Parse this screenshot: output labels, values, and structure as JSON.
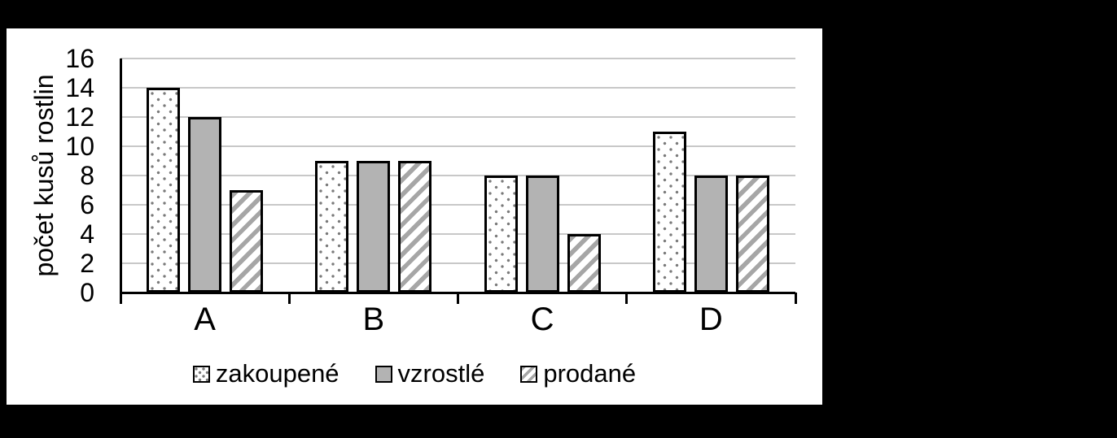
{
  "page": {
    "background": "#000000",
    "panel_background": "#ffffff"
  },
  "chart_data": {
    "type": "bar",
    "title": "",
    "xlabel": "",
    "ylabel": "počet kusů rostlin",
    "categories": [
      "A",
      "B",
      "C",
      "D"
    ],
    "series": [
      {
        "name": "zakoupené",
        "pattern": "dots",
        "values": [
          14,
          9,
          8,
          11
        ]
      },
      {
        "name": "vzrostlé",
        "pattern": "solid",
        "values": [
          12,
          9,
          8,
          8
        ]
      },
      {
        "name": "prodané",
        "pattern": "stripes",
        "values": [
          7,
          9,
          4,
          8
        ]
      }
    ],
    "yticks": [
      0,
      2,
      4,
      6,
      8,
      10,
      12,
      14,
      16
    ],
    "ylim": [
      0,
      16
    ],
    "grid": true,
    "legend_position": "bottom",
    "colors": {
      "solid_fill": "#b3b3b3",
      "stripe_fill": "#a6a6a6",
      "dot_fill": "#7a7a7a",
      "bar_border": "#000000",
      "gridline": "#c8c8c8",
      "axis": "#000000",
      "text": "#000000"
    }
  }
}
